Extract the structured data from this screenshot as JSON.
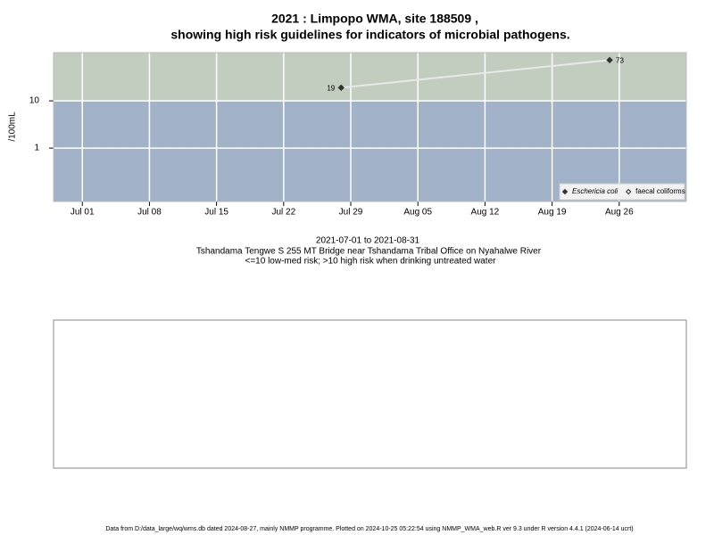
{
  "chart_data": {
    "type": "line",
    "title": [
      "2021 : Limpopo WMA, site 188509 ,",
      "showing high risk guidelines for indicators of microbial pathogens."
    ],
    "y_label": "/100mL",
    "subtitle": [
      "2021-07-01 to 2021-08-31",
      "Tshandama Tengwe S 255 MT Bridge near Tshandama Tribal Office on Nyahalwe River",
      "<=10 low-med risk; >10 high risk when drinking untreated water"
    ],
    "footer": "Data from D:/data_large/wq/wms.db dated 2024-08-27, mainly NMMP programme. Plotted on 2024-10-25 05:22:54 using NMMP_WMA_web.R ver 9.3 under R version 4.4.1 (2024-06-14 ucrt)",
    "x": [
      "2021-07-28",
      "2021-08-25"
    ],
    "series": [
      {
        "name": "Eschericia coli",
        "color": "#333333",
        "line_color": "#e8e8e8",
        "marker": "filled",
        "values": [
          19,
          73
        ],
        "value_labels": [
          "19",
          "73"
        ]
      },
      {
        "name": "faecal coliforms",
        "color": "#333333",
        "marker": "open",
        "values": [
          null,
          null
        ]
      }
    ],
    "xlim": [
      "2021-06-28",
      "2021-09-02"
    ],
    "xticks": [
      {
        "value": "2021-07-01",
        "label": "Jul 01"
      },
      {
        "value": "2021-07-08",
        "label": "Jul 08"
      },
      {
        "value": "2021-07-15",
        "label": "Jul 15"
      },
      {
        "value": "2021-07-22",
        "label": "Jul 22"
      },
      {
        "value": "2021-07-29",
        "label": "Jul 29"
      },
      {
        "value": "2021-08-05",
        "label": "Aug 05"
      },
      {
        "value": "2021-08-12",
        "label": "Aug 12"
      },
      {
        "value": "2021-08-19",
        "label": "Aug 19"
      },
      {
        "value": "2021-08-26",
        "label": "Aug 26"
      }
    ],
    "ylim": [
      0.074,
      105
    ],
    "yticks": [
      10,
      1
    ],
    "log_y": true,
    "grid": true,
    "threshold": 10,
    "band_colors": {
      "above": "#c2cdc0",
      "below": "#a2b2c9"
    },
    "legend": "bottom-right"
  }
}
